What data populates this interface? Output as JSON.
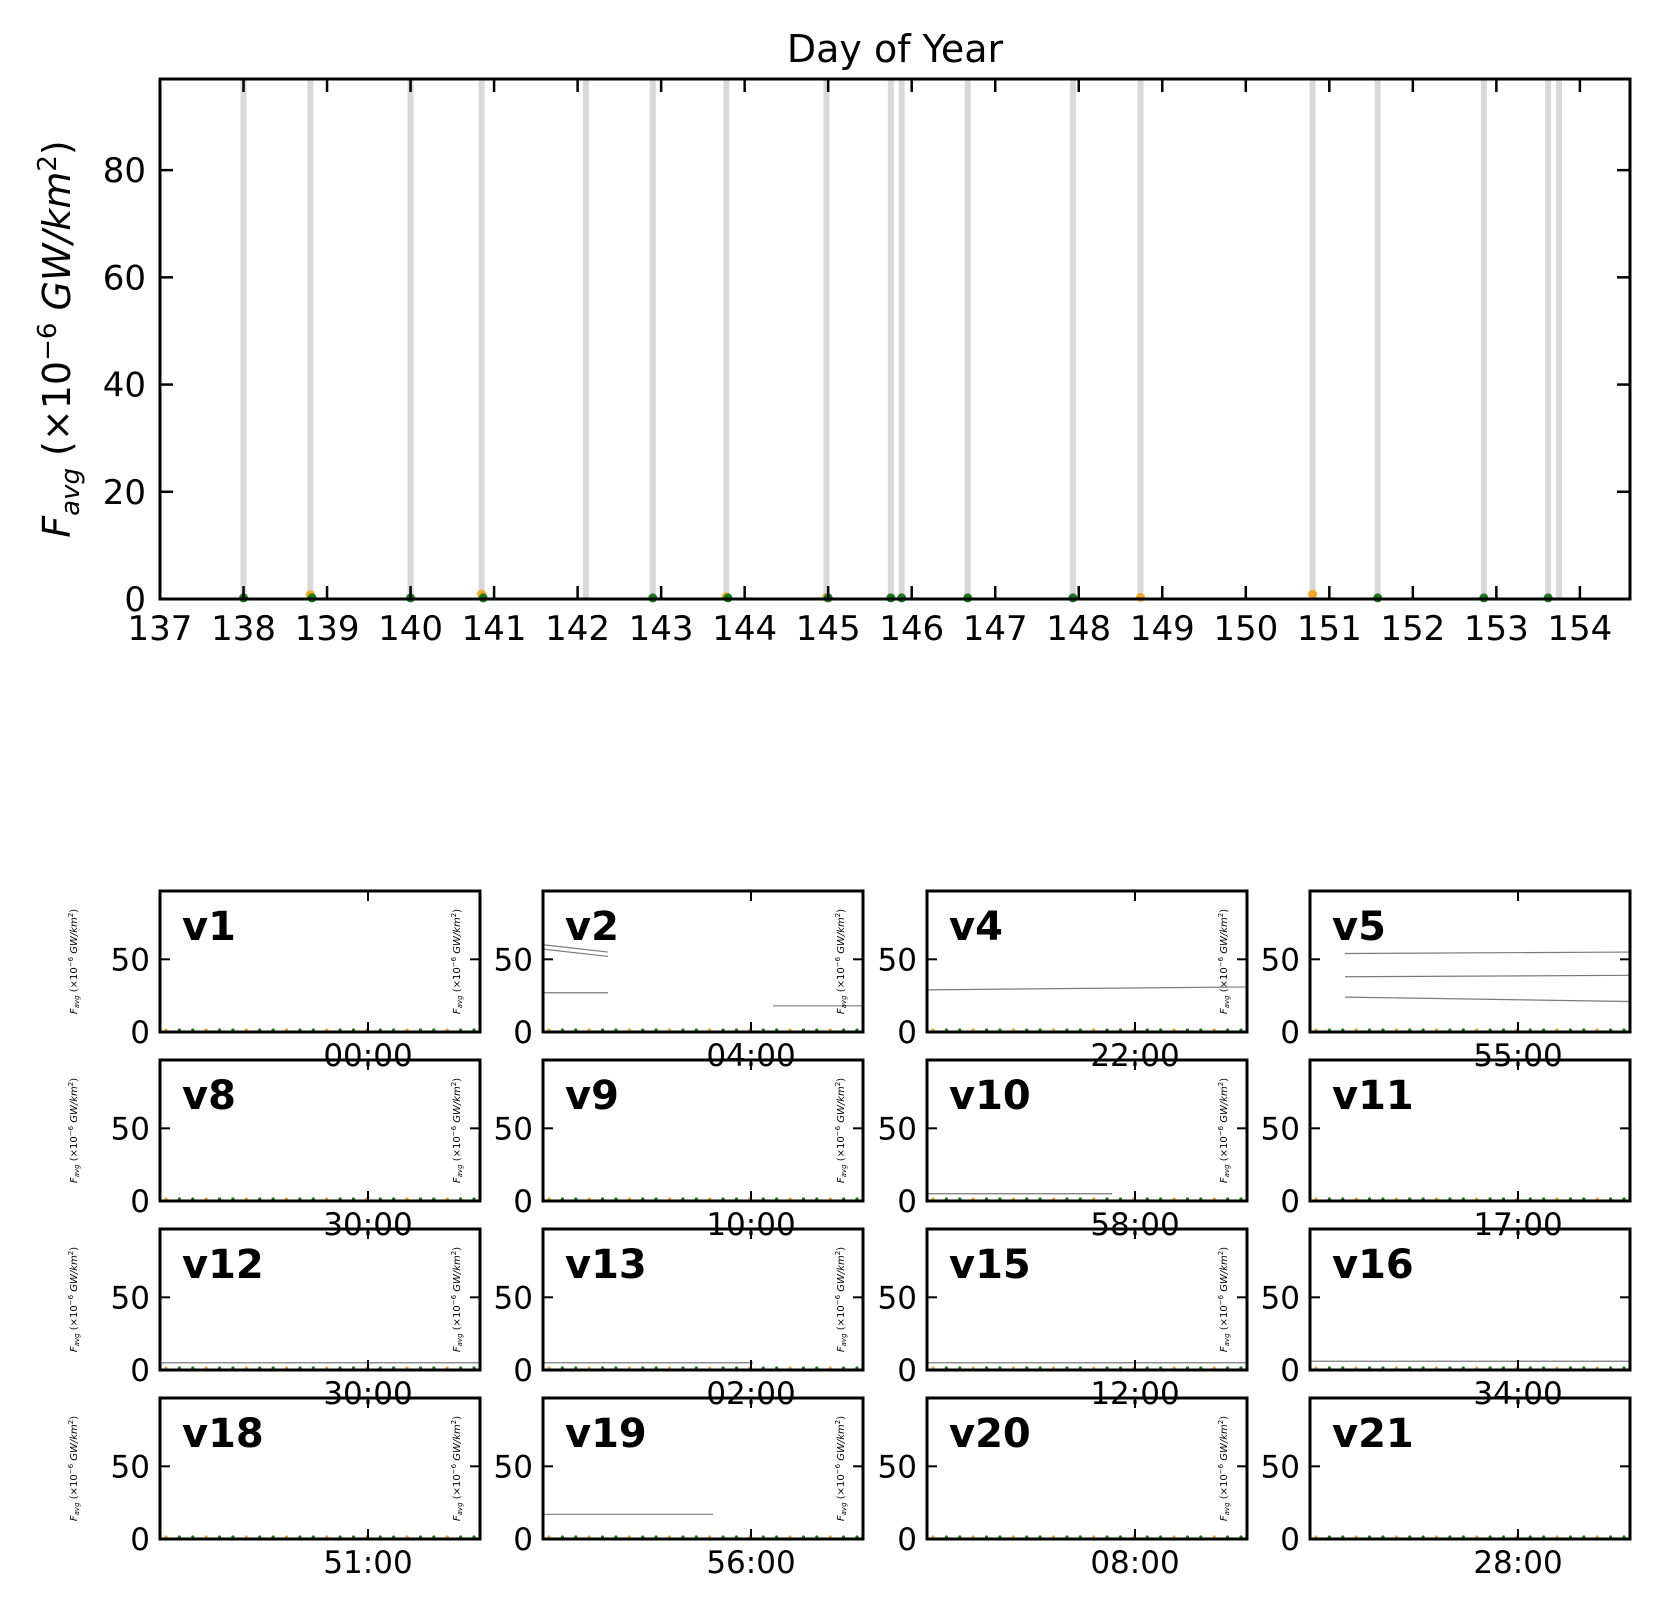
{
  "chart_data": [
    {
      "type": "scatter",
      "title": "Day of Year",
      "xlabel": "",
      "ylabel": "F_avg (×10^-6 GW/km^2)",
      "ylabel_main": "F",
      "ylabel_sub": "avg",
      "ylabel_unit_prefix": " (×10",
      "ylabel_exp": "−6",
      "ylabel_unit_mid": " GW/km",
      "ylabel_exp2": "2",
      "ylabel_close": ")",
      "xlim": [
        137,
        154.6
      ],
      "ylim": [
        0,
        97
      ],
      "xticks": [
        137,
        138,
        139,
        140,
        141,
        142,
        143,
        144,
        145,
        146,
        147,
        148,
        149,
        150,
        151,
        152,
        153,
        154
      ],
      "yticks": [
        0,
        20,
        40,
        60,
        80
      ],
      "event_days": [
        138.0,
        138.8,
        140.0,
        140.85,
        142.1,
        142.9,
        143.78,
        144.98,
        145.75,
        145.88,
        146.67,
        147.93,
        148.74,
        150.8,
        151.58,
        152.85,
        153.62,
        153.75
      ],
      "points": [
        {
          "x": 138.0,
          "y": 0.2,
          "color": "#1a7a1a"
        },
        {
          "x": 138.8,
          "y": 0.8,
          "color": "#f5a623"
        },
        {
          "x": 138.82,
          "y": 0.2,
          "color": "#1a7a1a"
        },
        {
          "x": 140.0,
          "y": 0.2,
          "color": "#1a7a1a"
        },
        {
          "x": 140.85,
          "y": 0.9,
          "color": "#f5a623"
        },
        {
          "x": 140.87,
          "y": 0.2,
          "color": "#1a7a1a"
        },
        {
          "x": 142.9,
          "y": 0.2,
          "color": "#1a7a1a"
        },
        {
          "x": 143.78,
          "y": 0.4,
          "color": "#f5a623"
        },
        {
          "x": 143.8,
          "y": 0.2,
          "color": "#1a7a1a"
        },
        {
          "x": 144.98,
          "y": 0.3,
          "color": "#f5a623"
        },
        {
          "x": 145.0,
          "y": 0.2,
          "color": "#1a7a1a"
        },
        {
          "x": 145.75,
          "y": 0.2,
          "color": "#1a7a1a"
        },
        {
          "x": 145.88,
          "y": 0.2,
          "color": "#1a7a1a"
        },
        {
          "x": 146.67,
          "y": 0.2,
          "color": "#1a7a1a"
        },
        {
          "x": 147.93,
          "y": 0.2,
          "color": "#1a7a1a"
        },
        {
          "x": 148.74,
          "y": 0.3,
          "color": "#f5a623"
        },
        {
          "x": 150.8,
          "y": 0.9,
          "color": "#f5a623"
        },
        {
          "x": 151.58,
          "y": 0.2,
          "color": "#1a7a1a"
        },
        {
          "x": 152.85,
          "y": 0.2,
          "color": "#1a7a1a"
        },
        {
          "x": 153.62,
          "y": 0.2,
          "color": "#1a7a1a"
        }
      ]
    },
    {
      "type": "line",
      "panels_ylim": [
        0,
        97
      ],
      "panels_yticks": [
        0,
        50
      ],
      "panels": [
        {
          "name": "v1",
          "xtick": "00:00",
          "lines": []
        },
        {
          "name": "v2",
          "xtick": "04:00",
          "lines": [
            {
              "y": [
                60,
                55
              ]
            },
            {
              "y": [
                57,
                52
              ]
            },
            {
              "y": [
                27,
                27
              ]
            },
            {
              "y": [
                18,
                18
              ]
            }
          ]
        },
        {
          "name": "v4",
          "xtick": "22:00",
          "lines": [
            {
              "y": [
                29,
                31
              ]
            }
          ]
        },
        {
          "name": "v5",
          "xtick": "55:00",
          "lines": [
            {
              "y": [
                54,
                55
              ]
            },
            {
              "y": [
                38,
                39
              ]
            },
            {
              "y": [
                24,
                21
              ]
            }
          ]
        },
        {
          "name": "v8",
          "xtick": "30:00",
          "lines": []
        },
        {
          "name": "v9",
          "xtick": "10:00",
          "lines": []
        },
        {
          "name": "v10",
          "xtick": "58:00",
          "lines": [
            {
              "y": [
                5,
                5
              ]
            }
          ]
        },
        {
          "name": "v11",
          "xtick": "17:00",
          "lines": []
        },
        {
          "name": "v12",
          "xtick": "30:00",
          "lines": [
            {
              "y": [
                5,
                5
              ]
            }
          ]
        },
        {
          "name": "v13",
          "xtick": "02:00",
          "lines": [
            {
              "y": [
                5,
                5
              ]
            }
          ]
        },
        {
          "name": "v15",
          "xtick": "12:00",
          "lines": [
            {
              "y": [
                5,
                5
              ]
            }
          ]
        },
        {
          "name": "v16",
          "xtick": "34:00",
          "lines": [
            {
              "y": [
                6,
                6
              ]
            }
          ]
        },
        {
          "name": "v18",
          "xtick": "51:00",
          "lines": []
        },
        {
          "name": "v19",
          "xtick": "56:00",
          "lines": [
            {
              "y": [
                17,
                17
              ]
            }
          ]
        },
        {
          "name": "v20",
          "xtick": "08:00",
          "lines": []
        },
        {
          "name": "v21",
          "xtick": "28:00",
          "lines": []
        }
      ]
    }
  ],
  "colors": {
    "event_band": "#d9d9d9",
    "green": "#1a7a1a",
    "orange": "#f5a623",
    "line_gray": "#7a7a7a"
  }
}
